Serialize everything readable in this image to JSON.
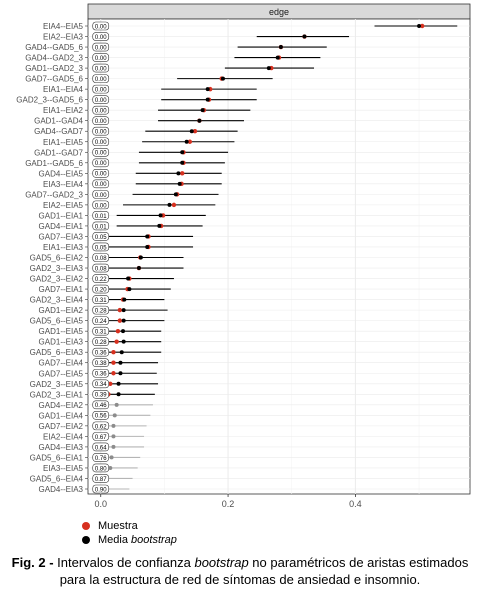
{
  "chart_data": {
    "type": "scatter",
    "facet_label": "edge",
    "xlim": [
      -0.02,
      0.58
    ],
    "xticks": [
      0.0,
      0.2,
      0.4
    ],
    "xtick_labels": [
      "0.0",
      "0.2",
      "0.4"
    ],
    "grid": true,
    "legend_position": "bottom-left",
    "colors": {
      "sample": "#d7301f",
      "mean": "#000000"
    },
    "edges": [
      {
        "label": "EIA4--EIA5",
        "q": "0.00",
        "sample": 0.505,
        "mean": 0.5,
        "lo": 0.43,
        "hi": 0.56
      },
      {
        "label": "EIA2--EIA3",
        "q": "0.00",
        "sample": 0.32,
        "mean": 0.32,
        "lo": 0.245,
        "hi": 0.39
      },
      {
        "label": "GAD4--GAD5_6",
        "q": "0.00",
        "sample": 0.283,
        "mean": 0.283,
        "lo": 0.215,
        "hi": 0.355
      },
      {
        "label": "GAD4--GAD2_3",
        "q": "0.00",
        "sample": 0.28,
        "mean": 0.278,
        "lo": 0.21,
        "hi": 0.345
      },
      {
        "label": "GAD1--GAD2_3",
        "q": "0.00",
        "sample": 0.268,
        "mean": 0.264,
        "lo": 0.195,
        "hi": 0.335
      },
      {
        "label": "GAD7--GAD5_6",
        "q": "0.00",
        "sample": 0.19,
        "mean": 0.192,
        "lo": 0.12,
        "hi": 0.27
      },
      {
        "label": "EIA1--EIA4",
        "q": "0.00",
        "sample": 0.172,
        "mean": 0.168,
        "lo": 0.095,
        "hi": 0.245
      },
      {
        "label": "GAD2_3--GAD5_6",
        "q": "0.00",
        "sample": 0.17,
        "mean": 0.168,
        "lo": 0.095,
        "hi": 0.245
      },
      {
        "label": "EIA1--EIA2",
        "q": "0.00",
        "sample": 0.162,
        "mean": 0.16,
        "lo": 0.09,
        "hi": 0.235
      },
      {
        "label": "GAD1--GAD4",
        "q": "0.00",
        "sample": 0.155,
        "mean": 0.155,
        "lo": 0.09,
        "hi": 0.225
      },
      {
        "label": "GAD4--GAD7",
        "q": "0.00",
        "sample": 0.148,
        "mean": 0.143,
        "lo": 0.07,
        "hi": 0.215
      },
      {
        "label": "EIA1--EIA5",
        "q": "0.00",
        "sample": 0.14,
        "mean": 0.135,
        "lo": 0.065,
        "hi": 0.21
      },
      {
        "label": "GAD1--GAD7",
        "q": "0.00",
        "sample": 0.13,
        "mean": 0.128,
        "lo": 0.06,
        "hi": 0.2
      },
      {
        "label": "GAD1--GAD5_6",
        "q": "0.00",
        "sample": 0.13,
        "mean": 0.128,
        "lo": 0.06,
        "hi": 0.195
      },
      {
        "label": "GAD4--EIA5",
        "q": "0.00",
        "sample": 0.128,
        "mean": 0.122,
        "lo": 0.055,
        "hi": 0.19
      },
      {
        "label": "EIA3--EIA4",
        "q": "0.00",
        "sample": 0.127,
        "mean": 0.124,
        "lo": 0.055,
        "hi": 0.19
      },
      {
        "label": "GAD7--GAD2_3",
        "q": "0.00",
        "sample": 0.12,
        "mean": 0.118,
        "lo": 0.05,
        "hi": 0.185
      },
      {
        "label": "EIA2--EIA5",
        "q": "0.00",
        "sample": 0.115,
        "mean": 0.108,
        "lo": 0.035,
        "hi": 0.18
      },
      {
        "label": "GAD1--EIA1",
        "q": "0.01",
        "sample": 0.098,
        "mean": 0.094,
        "lo": 0.025,
        "hi": 0.165
      },
      {
        "label": "GAD4--EIA1",
        "q": "0.01",
        "sample": 0.095,
        "mean": 0.092,
        "lo": 0.025,
        "hi": 0.16
      },
      {
        "label": "GAD7--EIA3",
        "q": "0.05",
        "sample": 0.075,
        "mean": 0.073,
        "lo": 0.01,
        "hi": 0.145
      },
      {
        "label": "EIA1--EIA3",
        "q": "0.05",
        "sample": 0.075,
        "mean": 0.073,
        "lo": 0.01,
        "hi": 0.145
      },
      {
        "label": "GAD5_6--EIA2",
        "q": "0.08",
        "sample": 0.062,
        "mean": 0.063,
        "lo": 0.005,
        "hi": 0.13
      },
      {
        "label": "GAD2_3--EIA3",
        "q": "0.08",
        "sample": 0.06,
        "mean": 0.06,
        "lo": 0.0,
        "hi": 0.13
      },
      {
        "label": "GAD2_3--EIA2",
        "q": "0.22",
        "sample": 0.045,
        "mean": 0.043,
        "lo": 0.0,
        "hi": 0.115
      },
      {
        "label": "GAD7--EIA1",
        "q": "0.20",
        "sample": 0.042,
        "mean": 0.045,
        "lo": 0.0,
        "hi": 0.11
      },
      {
        "label": "GAD2_3--EIA4",
        "q": "0.31",
        "sample": 0.035,
        "mean": 0.037,
        "lo": 0.0,
        "hi": 0.1
      },
      {
        "label": "GAD1--EIA2",
        "q": "0.28",
        "sample": 0.03,
        "mean": 0.036,
        "lo": 0.0,
        "hi": 0.105
      },
      {
        "label": "GAD5_6--EIA5",
        "q": "0.24",
        "sample": 0.03,
        "mean": 0.036,
        "lo": 0.0,
        "hi": 0.1
      },
      {
        "label": "GAD1--EIA5",
        "q": "0.31",
        "sample": 0.027,
        "mean": 0.035,
        "lo": 0.0,
        "hi": 0.095
      },
      {
        "label": "GAD1--EIA3",
        "q": "0.28",
        "sample": 0.025,
        "mean": 0.036,
        "lo": 0.0,
        "hi": 0.095
      },
      {
        "label": "GAD5_6--EIA3",
        "q": "0.36",
        "sample": 0.02,
        "mean": 0.033,
        "lo": 0.0,
        "hi": 0.095
      },
      {
        "label": "GAD7--EIA4",
        "q": "0.38",
        "sample": 0.02,
        "mean": 0.031,
        "lo": 0.0,
        "hi": 0.09
      },
      {
        "label": "GAD7--EIA5",
        "q": "0.36",
        "sample": 0.02,
        "mean": 0.031,
        "lo": 0.0,
        "hi": 0.088
      },
      {
        "label": "GAD2_3--EIA5",
        "q": "0.34",
        "sample": 0.015,
        "mean": 0.028,
        "lo": 0.0,
        "hi": 0.09
      },
      {
        "label": "GAD2_3--EIA1",
        "q": "0.39",
        "sample": 0.012,
        "mean": 0.028,
        "lo": 0.0,
        "hi": 0.085
      },
      {
        "label": "GAD4--EIA2",
        "q": "0.46",
        "sample": 0.0,
        "mean": 0.025,
        "lo": 0.0,
        "hi": 0.082
      },
      {
        "label": "GAD1--EIA4",
        "q": "0.56",
        "sample": 0.0,
        "mean": 0.022,
        "lo": 0.0,
        "hi": 0.078
      },
      {
        "label": "GAD7--EIA2",
        "q": "0.62",
        "sample": 0.0,
        "mean": 0.02,
        "lo": 0.0,
        "hi": 0.072
      },
      {
        "label": "EIA2--EIA4",
        "q": "0.67",
        "sample": 0.0,
        "mean": 0.02,
        "lo": 0.0,
        "hi": 0.068
      },
      {
        "label": "GAD4--EIA3",
        "q": "0.64",
        "sample": 0.0,
        "mean": 0.02,
        "lo": 0.0,
        "hi": 0.068
      },
      {
        "label": "GAD5_6--EIA1",
        "q": "0.76",
        "sample": 0.0,
        "mean": 0.017,
        "lo": 0.0,
        "hi": 0.062
      },
      {
        "label": "EIA3--EIA5",
        "q": "0.80",
        "sample": 0.0,
        "mean": 0.015,
        "lo": 0.0,
        "hi": 0.058
      },
      {
        "label": "GAD5_6--EIA4",
        "q": "0.87",
        "sample": 0.0,
        "mean": 0.01,
        "lo": 0.0,
        "hi": 0.05
      },
      {
        "label": "GAD4--EIA3",
        "q": "0.90",
        "sample": 0.0,
        "mean": 0.007,
        "lo": 0.0,
        "hi": 0.045
      }
    ]
  },
  "legend": {
    "sample_label": "Muestra",
    "mean_label_prefix": "Media ",
    "mean_label_em": "bootstrap"
  },
  "caption": {
    "fig_label": "Fig. 2 -",
    "text_before": " Intervalos de confianza ",
    "text_em": "bootstrap",
    "text_after": " no paramétricos de aristas estimados para la estructura de red de síntomas de ansiedad e insomnio."
  }
}
